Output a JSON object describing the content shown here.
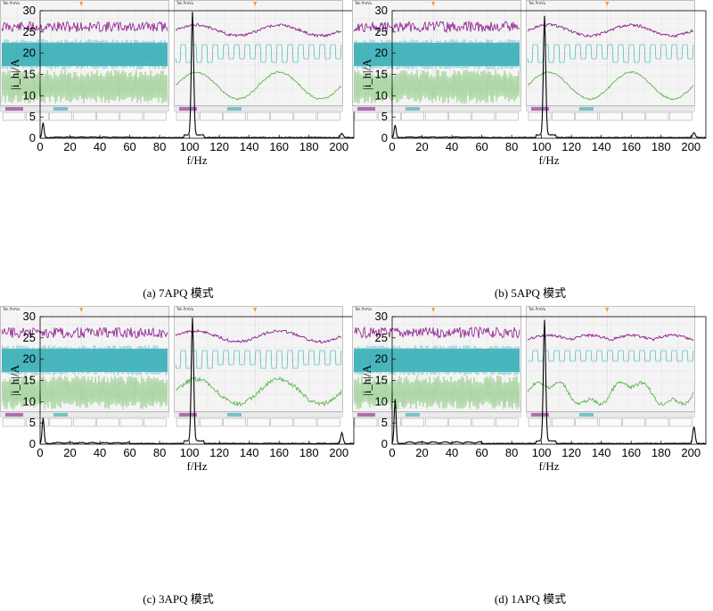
{
  "figure": {
    "panels": [
      {
        "id": "a",
        "caption": "(a) 7APQ 模式",
        "peak_main": 29,
        "peak_dc": 3.5,
        "peak_200": 1.0,
        "wave_style": "smooth"
      },
      {
        "id": "b",
        "caption": "(b) 5APQ 模式",
        "peak_main": 28,
        "peak_dc": 3.0,
        "peak_200": 1.2,
        "wave_style": "smooth"
      },
      {
        "id": "c",
        "caption": "(c) 3APQ 模式",
        "peak_main": 29,
        "peak_dc": 6.0,
        "peak_200": 2.5,
        "wave_style": "rough"
      },
      {
        "id": "d",
        "caption": "(d) 1APQ 模式",
        "peak_main": 28.5,
        "peak_dc": 10.5,
        "peak_200": 4.0,
        "wave_style": "distorted"
      }
    ],
    "scope_header": "Tek PreVu",
    "colors": {
      "ch1": "#8b1a8b",
      "ch2": "#2aa9b3",
      "ch3": "#4caf3a",
      "axis": "#000000"
    }
  },
  "chart_data": [
    {
      "type": "line",
      "panel": "a",
      "xlabel": "f/Hz",
      "ylabel": "|i_h|/A",
      "xlim": [
        0,
        210
      ],
      "ylim": [
        0,
        30
      ],
      "xticks": [
        0,
        20,
        40,
        60,
        80,
        100,
        120,
        140,
        160,
        180,
        200
      ],
      "yticks": [
        0,
        5,
        10,
        15,
        20,
        25,
        30
      ],
      "peaks": [
        {
          "x": 2,
          "y": 3.5
        },
        {
          "x": 102,
          "y": 29
        },
        {
          "x": 202,
          "y": 1.0
        }
      ]
    },
    {
      "type": "line",
      "panel": "b",
      "xlabel": "f/Hz",
      "ylabel": "|i_h|/A",
      "xlim": [
        0,
        210
      ],
      "ylim": [
        0,
        30
      ],
      "xticks": [
        0,
        20,
        40,
        60,
        80,
        100,
        120,
        140,
        160,
        180,
        200
      ],
      "yticks": [
        0,
        5,
        10,
        15,
        20,
        25,
        30
      ],
      "peaks": [
        {
          "x": 2,
          "y": 3.0
        },
        {
          "x": 102,
          "y": 28
        },
        {
          "x": 202,
          "y": 1.2
        }
      ]
    },
    {
      "type": "line",
      "panel": "c",
      "xlabel": "f/Hz",
      "ylabel": "|i_h|/A",
      "xlim": [
        0,
        210
      ],
      "ylim": [
        0,
        30
      ],
      "xticks": [
        0,
        20,
        40,
        60,
        80,
        100,
        120,
        140,
        160,
        180,
        200
      ],
      "yticks": [
        0,
        5,
        10,
        15,
        20,
        25,
        30
      ],
      "peaks": [
        {
          "x": 2,
          "y": 6.0
        },
        {
          "x": 102,
          "y": 29
        },
        {
          "x": 202,
          "y": 2.5
        }
      ]
    },
    {
      "type": "line",
      "panel": "d",
      "xlabel": "f/Hz",
      "ylabel": "|i_h|/A",
      "xlim": [
        0,
        210
      ],
      "ylim": [
        0,
        30
      ],
      "xticks": [
        0,
        20,
        40,
        60,
        80,
        100,
        120,
        140,
        160,
        180,
        200
      ],
      "yticks": [
        0,
        5,
        10,
        15,
        20,
        25,
        30
      ],
      "peaks": [
        {
          "x": 2,
          "y": 10.5
        },
        {
          "x": 102,
          "y": 28.5
        },
        {
          "x": 202,
          "y": 4.0
        }
      ]
    }
  ]
}
